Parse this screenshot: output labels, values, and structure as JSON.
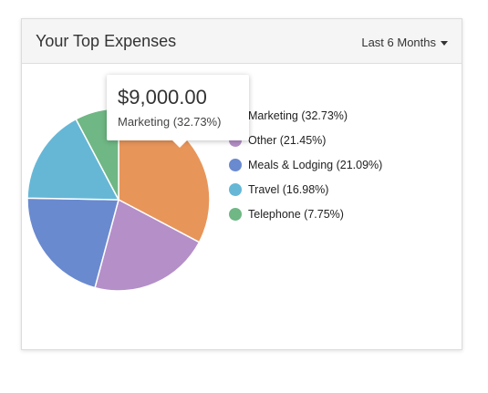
{
  "card": {
    "title": "Your Top Expenses",
    "range_label": "Last 6 Months"
  },
  "tooltip": {
    "amount": "$9,000.00",
    "label": "Marketing (32.73%)"
  },
  "legend": [
    {
      "label": "Marketing (32.73%)",
      "color": "#e8955a"
    },
    {
      "label": "Other (21.45%)",
      "color": "#b48fc8"
    },
    {
      "label": "Meals & Lodging (21.09%)",
      "color": "#6a8acf"
    },
    {
      "label": "Travel (16.98%)",
      "color": "#66b7d6"
    },
    {
      "label": "Telephone (7.75%)",
      "color": "#6fb784"
    }
  ],
  "chart_data": {
    "type": "pie",
    "categories": [
      "Marketing",
      "Other",
      "Meals & Lodging",
      "Travel",
      "Telephone"
    ],
    "values": [
      32.73,
      21.45,
      21.09,
      16.98,
      7.75
    ],
    "colors": [
      "#e8955a",
      "#b48fc8",
      "#6a8acf",
      "#66b7d6",
      "#6fb784"
    ],
    "title": "Your Top Expenses",
    "legend": "right",
    "start_angle": "top, clockwise"
  }
}
